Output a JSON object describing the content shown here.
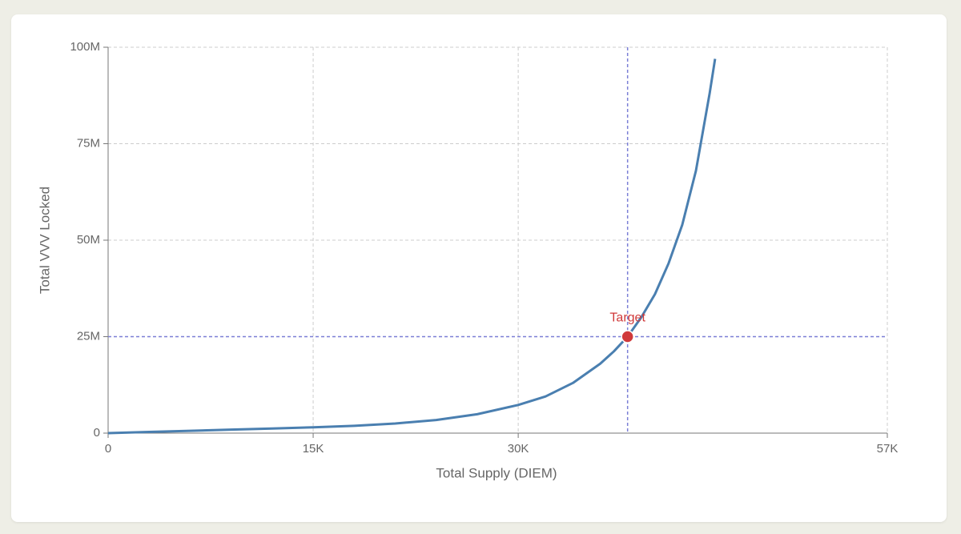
{
  "chart_data": {
    "type": "line",
    "x_label": "Total Supply (DIEM)",
    "y_label": "Total VVV Locked",
    "x": [
      0,
      3000,
      6000,
      9000,
      12000,
      15000,
      18000,
      21000,
      24000,
      27000,
      30000,
      32000,
      34000,
      36000,
      37000,
      38000,
      39000,
      40000,
      41000,
      42000,
      43000,
      44000,
      44400
    ],
    "series": [
      {
        "color": "#4a7fb0",
        "values": [
          0,
          300000,
          600000,
          900000,
          1200000,
          1500000,
          1900000,
          2500000,
          3400000,
          4900000,
          7300000,
          9500000,
          13000000,
          18000000,
          21200000,
          25000000,
          30000000,
          36000000,
          44000000,
          54000000,
          68000000,
          88000000,
          97000000
        ]
      }
    ],
    "xlim": [
      0,
      57000
    ],
    "xticks": [
      0,
      {
        "value": 15000,
        "label": "15K"
      },
      {
        "value": 30000,
        "label": "30K"
      },
      {
        "value": 57000,
        "label": "57K"
      }
    ],
    "ylim": [
      0,
      100000000
    ],
    "yticks": [
      0,
      {
        "value": 25000000,
        "label": "25M"
      },
      {
        "value": 50000000,
        "label": "50M"
      },
      {
        "value": 75000000,
        "label": "75M"
      },
      {
        "value": 100000000,
        "label": "100M"
      }
    ],
    "grid": true,
    "target": {
      "label": "Target",
      "x": 38000,
      "y": 25000000,
      "color": "#d0393a",
      "line_color": "#7b7fd6"
    }
  }
}
